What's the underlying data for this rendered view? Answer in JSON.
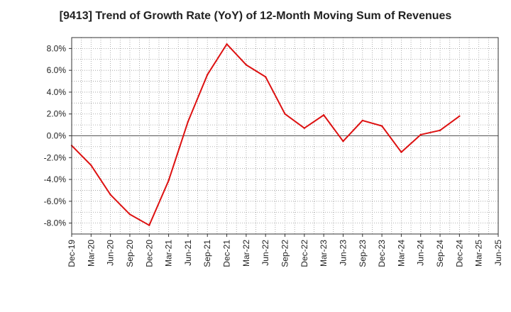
{
  "chart_data": {
    "type": "line",
    "title": "[9413]  Trend of Growth Rate (YoY) of 12-Month Moving Sum of Revenues",
    "xlabel": "",
    "ylabel": "",
    "x_ticks": [
      "Dec-19",
      "Mar-20",
      "Jun-20",
      "Sep-20",
      "Dec-20",
      "Mar-21",
      "Jun-21",
      "Sep-21",
      "Dec-21",
      "Mar-22",
      "Jun-22",
      "Sep-22",
      "Dec-22",
      "Mar-23",
      "Jun-23",
      "Sep-23",
      "Dec-23",
      "Mar-24",
      "Jun-24",
      "Sep-24",
      "Dec-24",
      "Mar-25",
      "Jun-25"
    ],
    "y_ticks": [
      -8.0,
      -6.0,
      -4.0,
      -2.0,
      0.0,
      2.0,
      4.0,
      6.0,
      8.0
    ],
    "y_tick_labels": [
      "-8.0%",
      "-6.0%",
      "-4.0%",
      "-2.0%",
      "0.0%",
      "2.0%",
      "4.0%",
      "6.0%",
      "8.0%"
    ],
    "ylim": [
      -9.0,
      9.0
    ],
    "grid": true,
    "series": [
      {
        "color": "#dd1111",
        "x": [
          "Dec-19",
          "Mar-20",
          "Jun-20",
          "Sep-20",
          "Dec-20",
          "Mar-21",
          "Jun-21",
          "Sep-21",
          "Dec-21",
          "Mar-22",
          "Jun-22",
          "Sep-22",
          "Dec-22",
          "Mar-23",
          "Jun-23",
          "Sep-23",
          "Dec-23",
          "Mar-24",
          "Jun-24",
          "Sep-24",
          "Dec-24"
        ],
        "values": [
          -0.9,
          -2.7,
          -5.4,
          -7.2,
          -8.2,
          -4.1,
          1.3,
          5.6,
          8.4,
          6.5,
          5.4,
          2.0,
          0.7,
          1.9,
          -0.5,
          1.4,
          0.9,
          -1.5,
          0.1,
          0.5,
          1.8
        ]
      }
    ]
  }
}
